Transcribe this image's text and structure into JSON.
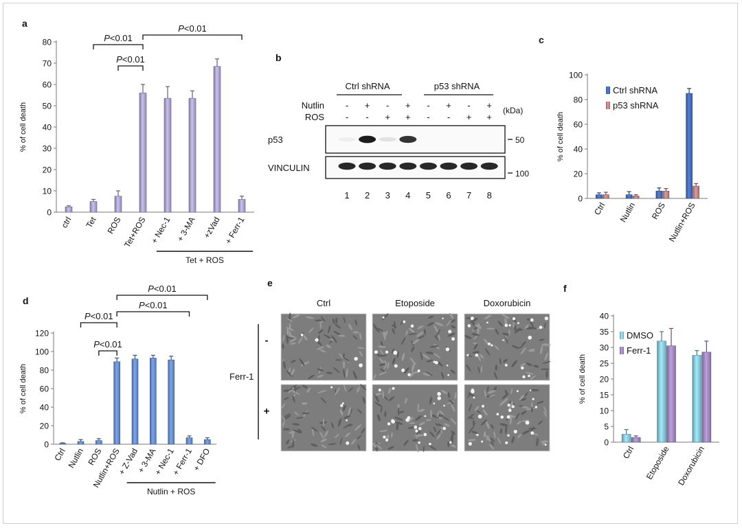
{
  "panels": {
    "a": "a",
    "b": "b",
    "c": "c",
    "d": "d",
    "e": "e",
    "f": "f"
  },
  "chart_data": [
    {
      "id": "a",
      "type": "bar",
      "ylabel": "% of cell death",
      "ylim": [
        0,
        80
      ],
      "yticks": [
        0,
        10,
        20,
        30,
        40,
        50,
        60,
        70,
        80
      ],
      "categories": [
        "ctrl",
        "Tet",
        "ROS",
        "Tet+ROS",
        "+ Nec-1",
        "+ 3-MA",
        "+zVad",
        "+ Ferr-1"
      ],
      "values": [
        2.5,
        5,
        7.5,
        56,
        53.5,
        53.5,
        68.5,
        6
      ],
      "errors": [
        0.5,
        1,
        2.5,
        4,
        5.5,
        3.5,
        3.5,
        1.5
      ],
      "color": "#b5acd9",
      "group_label": "Tet + ROS",
      "brackets": [
        {
          "from": 1,
          "to": 3,
          "label": "P<0.01"
        },
        {
          "from": 2,
          "to": 3,
          "label": "P<0.01"
        },
        {
          "from": 3,
          "to": 7,
          "label": "P<0.01"
        }
      ]
    },
    {
      "id": "c",
      "type": "bar",
      "ylabel": "% of cell death",
      "ylim": [
        0,
        100
      ],
      "yticks": [
        0,
        20,
        40,
        60,
        80,
        100
      ],
      "categories": [
        "Ctrl",
        "Nutlin",
        "ROS",
        "Nutlin+ROS"
      ],
      "series": [
        {
          "name": "Ctrl shRNA",
          "values": [
            3,
            3,
            6,
            85
          ],
          "errors": [
            1.5,
            2.5,
            2.5,
            4
          ],
          "color": "#4a72c4"
        },
        {
          "name": "p53 shRNA",
          "values": [
            3,
            2,
            6,
            10
          ],
          "errors": [
            2,
            1,
            2,
            2
          ],
          "color": "#c98a8a"
        }
      ],
      "legend": "top-left"
    },
    {
      "id": "d",
      "type": "bar",
      "ylabel": "% of cell death",
      "ylim": [
        0,
        120
      ],
      "yticks": [
        0,
        20,
        40,
        60,
        80,
        100,
        120
      ],
      "categories": [
        "Ctrl",
        "Nutlin",
        "ROS",
        "Nutlin+ROS",
        "+ Z-Vad",
        "+ 3-MA",
        "+ Nec-1",
        "+ Ferr-1",
        "+ DFO"
      ],
      "values": [
        1,
        3,
        4,
        89,
        92,
        93,
        91,
        7,
        5
      ],
      "errors": [
        0.5,
        2,
        2,
        4,
        4,
        3,
        4,
        2,
        2
      ],
      "color": "#6d95d8",
      "group_label": "Nutlin + ROS",
      "brackets": [
        {
          "from": 3,
          "to": 8,
          "label": "P<0.01"
        },
        {
          "from": 3,
          "to": 7,
          "label": "P<0.01"
        },
        {
          "from": 1,
          "to": 3,
          "label": "P<0.01"
        },
        {
          "from": 2,
          "to": 3,
          "label": "P<0.01"
        }
      ]
    },
    {
      "id": "f",
      "type": "bar",
      "ylabel": "% of cell death",
      "ylim": [
        0,
        40
      ],
      "yticks": [
        0,
        5,
        10,
        15,
        20,
        25,
        30,
        35,
        40
      ],
      "categories": [
        "Ctrl",
        "Etoposide",
        "Doxorubicin"
      ],
      "series": [
        {
          "name": "DMSO",
          "values": [
            2.5,
            32,
            27.5
          ],
          "errors": [
            1.5,
            3,
            1.5
          ],
          "color": "#8fd3e6"
        },
        {
          "name": "Ferr-1",
          "values": [
            1.5,
            30.5,
            28.5
          ],
          "errors": [
            0.5,
            5.5,
            3.5
          ],
          "color": "#a98fc8"
        }
      ],
      "legend": "top-left"
    }
  ],
  "blot": {
    "groups": [
      "Ctrl shRNA",
      "p53 shRNA"
    ],
    "rows": [
      {
        "label": "Nutlin",
        "signs": [
          "-",
          "+",
          "-",
          "+",
          "-",
          "+",
          "-",
          "+"
        ]
      },
      {
        "label": "ROS",
        "signs": [
          "-",
          "-",
          "+",
          "+",
          "-",
          "-",
          "+",
          "+"
        ]
      }
    ],
    "kda_label": "(kDa)",
    "bands": [
      {
        "label": "p53",
        "marker": "50",
        "intensities": [
          0.05,
          0.95,
          0.1,
          0.85,
          0,
          0,
          0,
          0
        ]
      },
      {
        "label": "VINCULIN",
        "marker": "100",
        "intensities": [
          0.9,
          0.9,
          0.9,
          0.9,
          0.9,
          0.9,
          0.9,
          0.9
        ]
      }
    ],
    "lanes": [
      "1",
      "2",
      "3",
      "4",
      "5",
      "6",
      "7",
      "8"
    ]
  },
  "micro": {
    "columns": [
      "Ctrl",
      "Etoposide",
      "Doxorubicin"
    ],
    "row_signs": [
      "-",
      "+"
    ],
    "side_label": "Ferr-1",
    "density": [
      [
        0.1,
        0.45,
        0.5
      ],
      [
        0.12,
        0.55,
        0.6
      ]
    ]
  }
}
